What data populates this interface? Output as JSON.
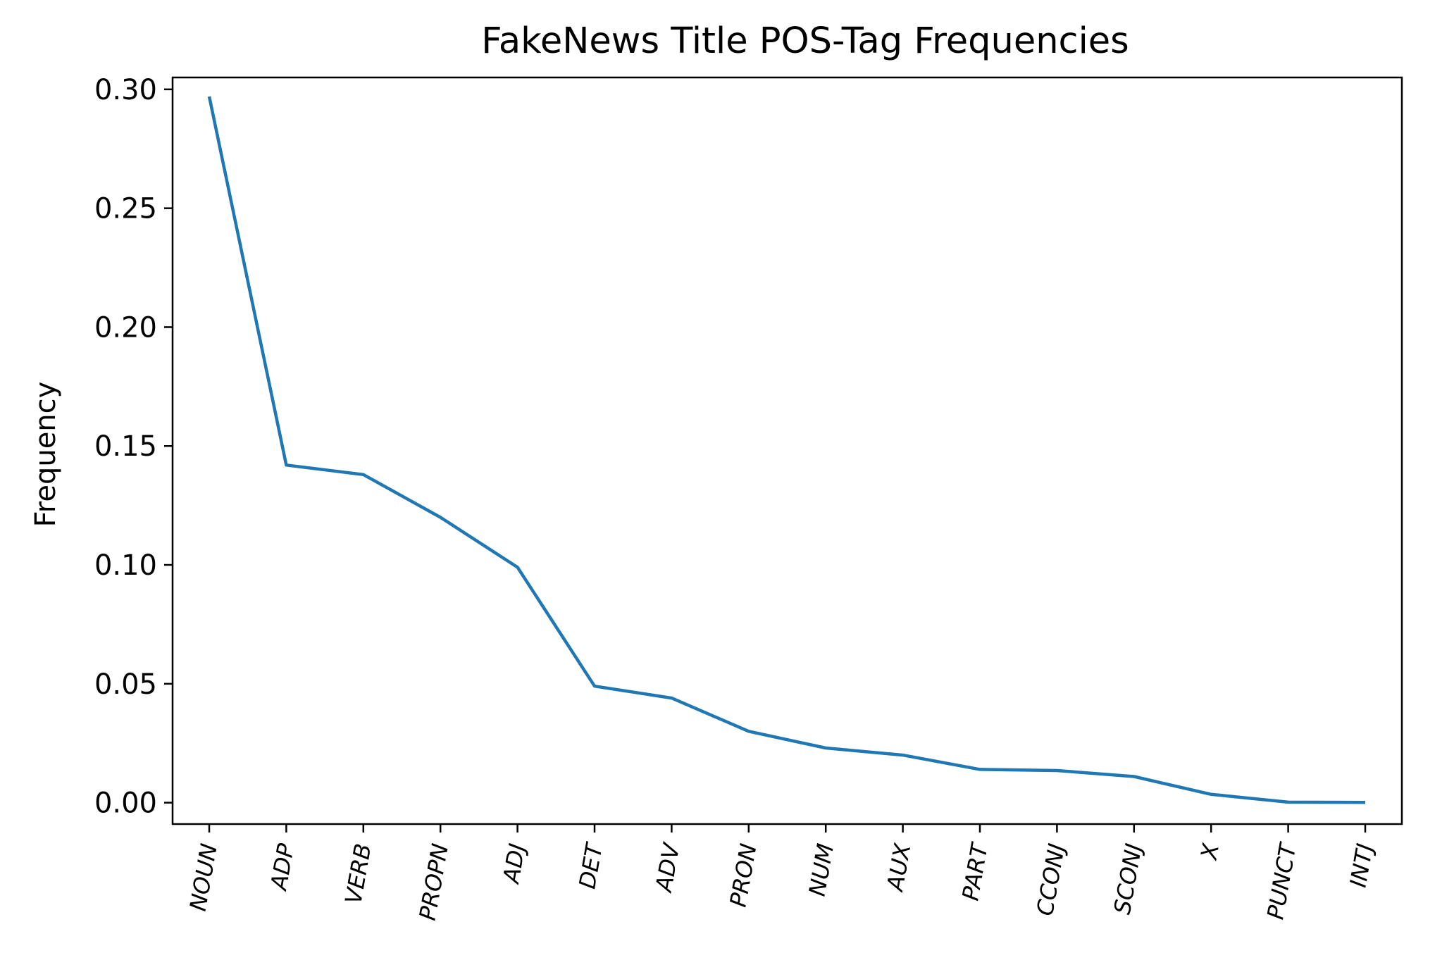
{
  "chart_data": {
    "type": "line",
    "title": "FakeNews Title POS-Tag Frequencies",
    "xlabel": "",
    "ylabel": "Frequency",
    "categories": [
      "NOUN",
      "ADP",
      "VERB",
      "PROPN",
      "ADJ",
      "DET",
      "ADV",
      "PRON",
      "NUM",
      "AUX",
      "PART",
      "CCONJ",
      "SCONJ",
      "X",
      "PUNCT",
      "INTJ"
    ],
    "series": [
      {
        "values": [
          0.297,
          0.142,
          0.138,
          0.12,
          0.099,
          0.049,
          0.044,
          0.03,
          0.023,
          0.02,
          0.014,
          0.0135,
          0.011,
          0.0035,
          0.0002,
          0.0001
        ],
        "color": "#1f77b4"
      }
    ],
    "ylim": [
      -0.009,
      0.305
    ],
    "yticks": [
      0.0,
      0.05,
      0.1,
      0.15,
      0.2,
      0.25,
      0.3
    ],
    "ytick_labels": [
      "0.00",
      "0.05",
      "0.10",
      "0.15",
      "0.20",
      "0.25",
      "0.30"
    ],
    "xtick_rotation": "-80deg italic",
    "grid": false,
    "legend": "none"
  }
}
